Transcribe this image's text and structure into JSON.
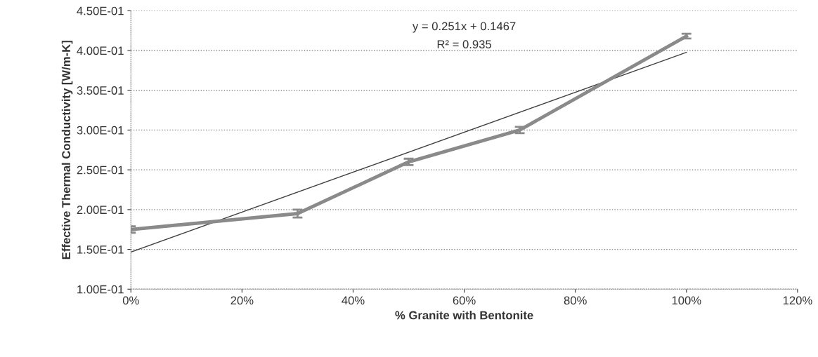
{
  "chart_data": {
    "type": "line",
    "xlabel": "% Granite with Bentonite",
    "ylabel": "Effective Thermal Conductivity [W/m-K]",
    "series": [
      {
        "color": "#8a8a8a",
        "x": [
          0,
          0.3,
          0.5,
          0.7,
          1.0
        ],
        "values": [
          0.175,
          0.195,
          0.26,
          0.3,
          0.418
        ],
        "errors": [
          0.004,
          0.005,
          0.004,
          0.004,
          0.003
        ]
      },
      {
        "type": "line",
        "color": "#404040",
        "x": [
          0,
          1.0
        ],
        "values": [
          0.1467,
          0.3977
        ]
      }
    ],
    "annotations": [
      "y = 0.251x + 0.1467",
      "R² = 0.935"
    ],
    "xlim": [
      0,
      1.2
    ],
    "xticks": [
      {
        "value": 0,
        "label": "0%"
      },
      {
        "value": 0.2,
        "label": "20%"
      },
      {
        "value": 0.4,
        "label": "40%"
      },
      {
        "value": 0.6,
        "label": "60%"
      },
      {
        "value": 0.8,
        "label": "80%"
      },
      {
        "value": 1.0,
        "label": "100%"
      },
      {
        "value": 1.2,
        "label": "120%"
      }
    ],
    "ylim": [
      0.1,
      0.45
    ],
    "yticks": [
      {
        "value": 0.1,
        "label": "1.00E-01"
      },
      {
        "value": 0.15,
        "label": "1.50E-01"
      },
      {
        "value": 0.2,
        "label": "2.00E-01"
      },
      {
        "value": 0.25,
        "label": "2.50E-01"
      },
      {
        "value": 0.3,
        "label": "3.00E-01"
      },
      {
        "value": 0.35,
        "label": "3.50E-01"
      },
      {
        "value": 0.4,
        "label": "4.00E-01"
      },
      {
        "value": 0.45,
        "label": "4.50E-01"
      }
    ],
    "grid": "y"
  }
}
